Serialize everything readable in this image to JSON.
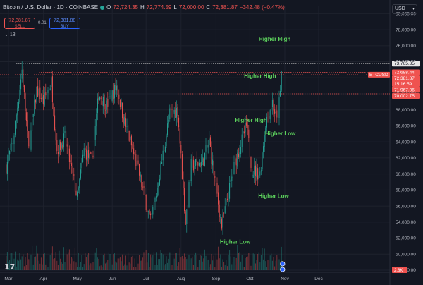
{
  "header": {
    "title": "Bitcoin / U.S. Dollar · 1D · COINBASE",
    "o_label": "O",
    "o_value": "72,724.35",
    "h_label": "H",
    "h_value": "72,774.59",
    "l_label": "L",
    "l_value": "72,000.00",
    "c_label": "C",
    "c_value": "72,381.87",
    "change": "−342.48 (−0.47%)"
  },
  "trade": {
    "sell_price": "72,381.87",
    "sell_label": "SELL",
    "spread": "0.01",
    "buy_price": "72,381.88",
    "buy_label": "BUY"
  },
  "indicators_count": "13",
  "currency": "USD",
  "volume_label": "2.8K",
  "colors": {
    "up": "#26a69a",
    "down": "#ef5350",
    "annotation": "#5dd35d",
    "background": "#131722"
  },
  "chart_data": {
    "type": "candlestick",
    "symbol": "BTCUSD",
    "timeframe": "1D",
    "x_ticks": [
      "Mar",
      "Apr",
      "May",
      "Jun",
      "Jul",
      "Aug",
      "Sep",
      "Oct",
      "Nov",
      "Dec"
    ],
    "y_ticks": [
      "80,000.00",
      "78,000.00",
      "76,000.00",
      "74,000.00",
      "72,000.00",
      "70,000.00",
      "68,000.00",
      "66,000.00",
      "64,000.00",
      "62,000.00",
      "60,000.00",
      "58,000.00",
      "56,000.00",
      "54,000.00",
      "52,000.00",
      "50,000.00",
      "48,000.00"
    ],
    "ylim": [
      48000,
      81000
    ],
    "price_labels": [
      "73,765.35",
      "72,688.44",
      "72,381.87",
      "15:16:59",
      "71,967.06",
      "70,002.75"
    ],
    "price_tag": "BTCUSD",
    "annotations": [
      "Higher High",
      "Higher High",
      "Higher High",
      "Higher Low",
      "Higher Low",
      "Higher Low"
    ],
    "reference_lines": [
      73765.35,
      72688.44,
      71967.06,
      70002.75
    ],
    "close_path": [
      [
        "2024-02-28",
        61000
      ],
      [
        "2024-03-05",
        64000
      ],
      [
        "2024-03-13",
        73000
      ],
      [
        "2024-03-19",
        63000
      ],
      [
        "2024-03-26",
        70500
      ],
      [
        "2024-04-01",
        69000
      ],
      [
        "2024-04-08",
        71500
      ],
      [
        "2024-04-13",
        63000
      ],
      [
        "2024-04-20",
        64500
      ],
      [
        "2024-05-01",
        57000
      ],
      [
        "2024-05-07",
        63000
      ],
      [
        "2024-05-14",
        61500
      ],
      [
        "2024-05-20",
        70000
      ],
      [
        "2024-05-27",
        68500
      ],
      [
        "2024-06-05",
        71000
      ],
      [
        "2024-06-11",
        67000
      ],
      [
        "2024-06-24",
        60500
      ],
      [
        "2024-07-05",
        54000
      ],
      [
        "2024-07-10",
        57500
      ],
      [
        "2024-07-22",
        67500
      ],
      [
        "2024-07-29",
        68000
      ],
      [
        "2024-08-05",
        54000
      ],
      [
        "2024-08-10",
        61000
      ],
      [
        "2024-08-20",
        61500
      ],
      [
        "2024-08-26",
        64000
      ],
      [
        "2024-09-06",
        53500
      ],
      [
        "2024-09-18",
        61500
      ],
      [
        "2024-09-28",
        66000
      ],
      [
        "2024-10-03",
        60500
      ],
      [
        "2024-10-10",
        60000
      ],
      [
        "2024-10-15",
        66500
      ],
      [
        "2024-10-21",
        69000
      ],
      [
        "2024-10-25",
        66500
      ],
      [
        "2024-10-28",
        70000
      ],
      [
        "2024-10-29",
        72700
      ]
    ]
  }
}
